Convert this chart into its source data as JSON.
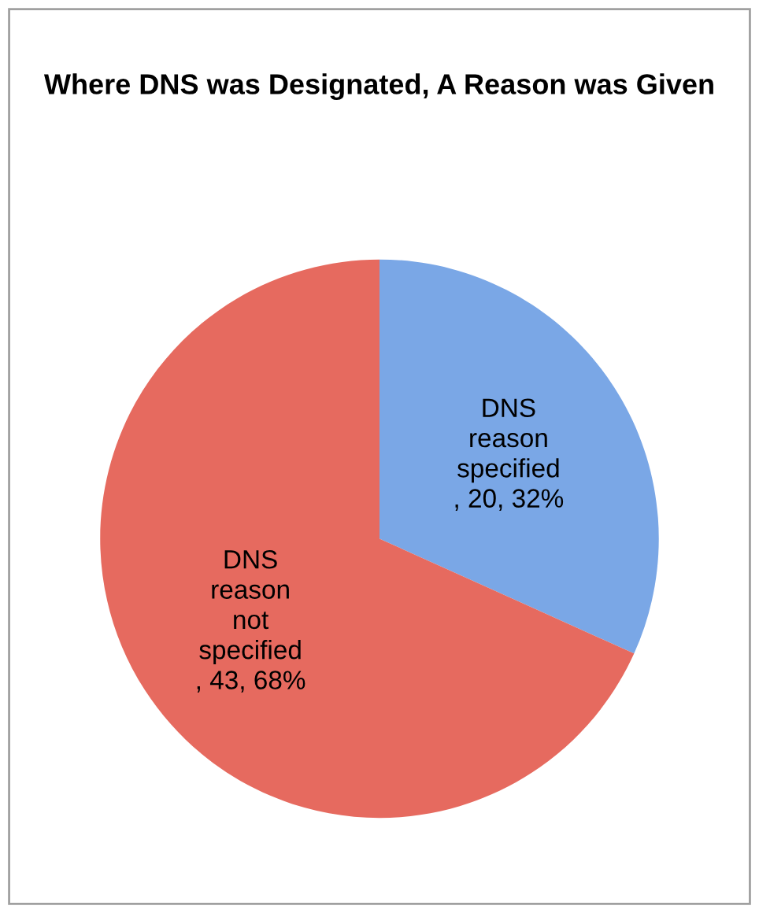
{
  "chart_data": {
    "type": "pie",
    "title": "Where DNS was Designated, A Reason was Given",
    "categories": [
      "DNS reason specified",
      "DNS reason not specified"
    ],
    "values": [
      20,
      43
    ],
    "colors": [
      "#7aa7e6",
      "#e66a5f"
    ],
    "value_labels": [
      ", 20, 32%",
      ", 43, 68%"
    ],
    "legend": false
  }
}
